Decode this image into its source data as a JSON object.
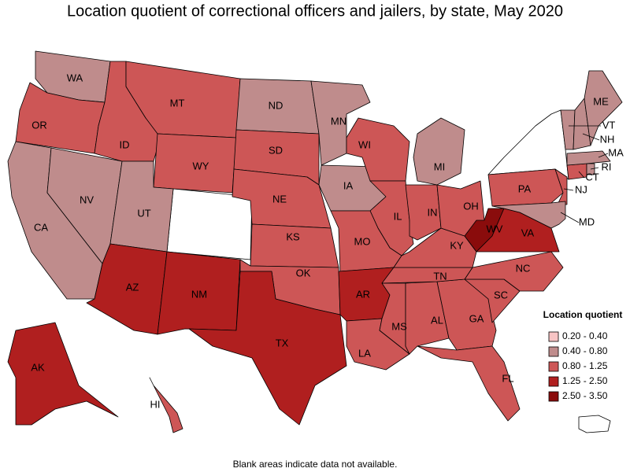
{
  "title": "Location quotient of correctional officers and jailers, by state, May 2020",
  "legend": {
    "title": "Location quotient",
    "items": [
      {
        "label": "0.20 - 0.40",
        "color": "#f7c4c4"
      },
      {
        "label": "0.40 - 0.80",
        "color": "#bf8c8c"
      },
      {
        "label": "0.80 - 1.25",
        "color": "#cd5656"
      },
      {
        "label": "1.25 - 2.50",
        "color": "#b01f1f"
      },
      {
        "label": "2.50 - 3.50",
        "color": "#8a0c0c"
      }
    ]
  },
  "states": [
    {
      "label": "WA",
      "class": 1
    },
    {
      "label": "OR",
      "class": 2
    },
    {
      "label": "CA",
      "class": 1
    },
    {
      "label": "NV",
      "class": 1
    },
    {
      "label": "ID",
      "class": 2
    },
    {
      "label": "MT",
      "class": 2
    },
    {
      "label": "WY",
      "class": 2
    },
    {
      "label": "UT",
      "class": 1
    },
    {
      "label": "AZ",
      "class": 3
    },
    {
      "label": "NM",
      "class": 3
    },
    {
      "label": "ND",
      "class": 1
    },
    {
      "label": "SD",
      "class": 2
    },
    {
      "label": "NE",
      "class": 2
    },
    {
      "label": "KS",
      "class": 2
    },
    {
      "label": "OK",
      "class": 2
    },
    {
      "label": "TX",
      "class": 3
    },
    {
      "label": "MN",
      "class": 1
    },
    {
      "label": "IA",
      "class": 1
    },
    {
      "label": "WI",
      "class": 2
    },
    {
      "label": "IL",
      "class": 2
    },
    {
      "label": "MO",
      "class": 2
    },
    {
      "label": "AR",
      "class": 3
    },
    {
      "label": "LA",
      "class": 2
    },
    {
      "label": "MS",
      "class": 2
    },
    {
      "label": "AL",
      "class": 2
    },
    {
      "label": "GA",
      "class": 2
    },
    {
      "label": "FL",
      "class": 2
    },
    {
      "label": "SC",
      "class": 2
    },
    {
      "label": "NC",
      "class": 2
    },
    {
      "label": "TN",
      "class": 2
    },
    {
      "label": "KY",
      "class": 2
    },
    {
      "label": "IN",
      "class": 2
    },
    {
      "label": "OH",
      "class": 2
    },
    {
      "label": "MI",
      "class": 1
    },
    {
      "label": "WV",
      "class": 4
    },
    {
      "label": "VA",
      "class": 3
    },
    {
      "label": "PA",
      "class": 2
    },
    {
      "label": "NJ",
      "class": 2
    },
    {
      "label": "MD",
      "class": 1
    },
    {
      "label": "CT",
      "class": 2
    },
    {
      "label": "RI",
      "class": 1
    },
    {
      "label": "MA",
      "class": 1
    },
    {
      "label": "VT",
      "class": 1
    },
    {
      "label": "NH",
      "class": 1
    },
    {
      "label": "ME",
      "class": 1
    },
    {
      "label": "AK",
      "class": 3
    },
    {
      "label": "HI",
      "class": 2
    }
  ],
  "footnote": "Blank areas indicate data not available."
}
